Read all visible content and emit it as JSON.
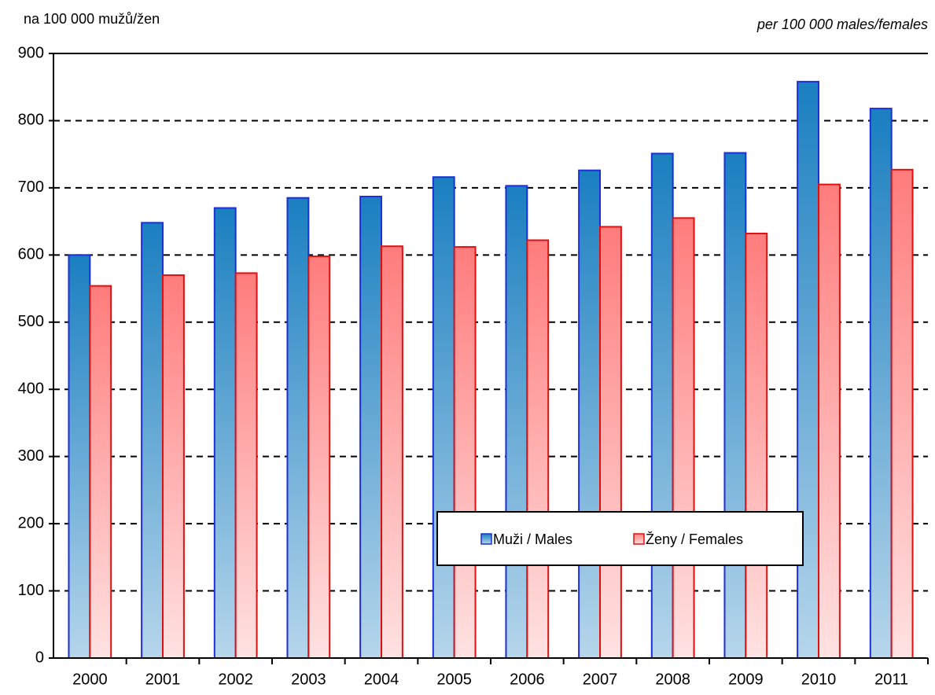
{
  "chart_data": {
    "type": "bar",
    "subtitle_left": "na 100 000 mužů/žen",
    "subtitle_right": "per 100 000 males/females",
    "categories": [
      "2000",
      "2001",
      "2002",
      "2003",
      "2004",
      "2005",
      "2006",
      "2007",
      "2008",
      "2009",
      "2010",
      "2011"
    ],
    "series": [
      {
        "name": "Muži / Males",
        "color": "#1a7fc0",
        "edgecolor": "#1c2fd8",
        "values": [
          600,
          648,
          670,
          685,
          687,
          716,
          703,
          726,
          751,
          752,
          858,
          818
        ]
      },
      {
        "name": "Ženy / Females",
        "color": "#ff7c7c",
        "edgecolor": "#e01010",
        "values": [
          554,
          570,
          573,
          598,
          613,
          612,
          622,
          642,
          655,
          632,
          705,
          727
        ]
      }
    ],
    "ylim": [
      0,
      900
    ],
    "yticks": [
      0,
      100,
      200,
      300,
      400,
      500,
      600,
      700,
      800,
      900
    ],
    "grid": true
  }
}
